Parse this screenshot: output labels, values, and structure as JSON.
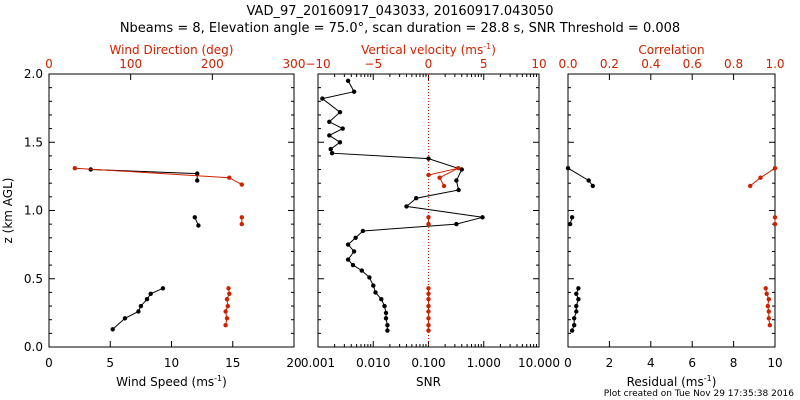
{
  "header": {
    "title": "VAD_97_20160917_043033, 20160917.043050",
    "subtitle": "Nbeams = 8, Elevation angle = 75.0°, scan duration = 28.8 s, SNR Threshold = 0.008"
  },
  "footer": {
    "timestamp": "Plot created on Tue Nov 29 17:35:38 2016"
  },
  "colors": {
    "primary": "#000000",
    "secondary": "#cc2200"
  },
  "chart_data": [
    {
      "type": "line",
      "ylabel": "z (km AGL)",
      "ylim": [
        0,
        2
      ],
      "yticks": [
        "0.0",
        "0.5",
        "1.0",
        "1.5",
        "2.0"
      ],
      "xlabel": "Wind Speed (ms",
      "xlabel_sup": "-1",
      "xlabel_tail": ")",
      "xlim": [
        0,
        20
      ],
      "xticks": [
        "0",
        "5",
        "10",
        "15",
        "20"
      ],
      "top_label": "Wind Direction (deg)",
      "top_lim": [
        0,
        333
      ],
      "top_ticks": [
        "0",
        "100",
        "200",
        "300"
      ],
      "series": [
        {
          "color": "#000000",
          "axis": "bottom",
          "segments": [
            [
              [
                3.4,
                1.3
              ],
              [
                12.1,
                1.27
              ],
              [
                12.1,
                1.22
              ]
            ],
            [
              [
                11.9,
                0.95
              ],
              [
                12.2,
                0.89
              ]
            ],
            [
              [
                9.3,
                0.43
              ],
              [
                8.3,
                0.39
              ],
              [
                8.0,
                0.35
              ],
              [
                7.5,
                0.3
              ],
              [
                7.3,
                0.26
              ],
              [
                6.2,
                0.21
              ],
              [
                5.2,
                0.13
              ]
            ]
          ]
        },
        {
          "color": "#cc2200",
          "axis": "top",
          "segments": [
            [
              [
                35,
                1.31
              ],
              [
                245,
                1.24
              ],
              [
                262,
                1.19
              ]
            ],
            [
              [
                262,
                0.95
              ],
              [
                262,
                0.9
              ]
            ],
            [
              [
                244,
                0.43
              ],
              [
                245,
                0.39
              ],
              [
                242,
                0.35
              ],
              [
                243,
                0.3
              ],
              [
                240,
                0.26
              ],
              [
                242,
                0.21
              ],
              [
                240,
                0.16
              ]
            ]
          ]
        }
      ]
    },
    {
      "type": "line",
      "xlabel": "SNR",
      "xscale": "log",
      "xlim": [
        0.001,
        10
      ],
      "xticks": [
        "0.001",
        "0.010",
        "0.100",
        "1.000",
        "10.000"
      ],
      "top_label": "Vertical velocity (ms",
      "top_label_sup": "-1",
      "top_label_tail": ")",
      "top_lim": [
        -10,
        10
      ],
      "top_ticks": [
        "−10",
        "−5",
        "0",
        "5",
        "10"
      ],
      "reference_line": {
        "axis": "top",
        "value": 0,
        "style": "dotted"
      },
      "series": [
        {
          "color": "#000000",
          "axis": "bottom",
          "segments": [
            [
              [
                0.0035,
                1.95
              ],
              [
                0.0045,
                1.87
              ],
              [
                0.0012,
                1.82
              ],
              [
                0.0025,
                1.72
              ],
              [
                0.0016,
                1.65
              ],
              [
                0.0028,
                1.6
              ],
              [
                0.0016,
                1.55
              ],
              [
                0.0025,
                1.5
              ],
              [
                0.0017,
                1.45
              ],
              [
                0.0018,
                1.42
              ],
              [
                0.1,
                1.38
              ],
              [
                0.4,
                1.3
              ],
              [
                0.32,
                1.22
              ],
              [
                0.35,
                1.15
              ],
              [
                0.06,
                1.09
              ],
              [
                0.04,
                1.03
              ],
              [
                0.95,
                0.95
              ],
              [
                0.32,
                0.9
              ],
              [
                0.0065,
                0.85
              ],
              [
                0.0048,
                0.8
              ],
              [
                0.0035,
                0.75
              ],
              [
                0.0045,
                0.7
              ],
              [
                0.0035,
                0.64
              ],
              [
                0.0043,
                0.6
              ],
              [
                0.0062,
                0.56
              ],
              [
                0.0085,
                0.51
              ],
              [
                0.01,
                0.45
              ],
              [
                0.011,
                0.4
              ],
              [
                0.014,
                0.35
              ],
              [
                0.016,
                0.3
              ],
              [
                0.017,
                0.25
              ],
              [
                0.017,
                0.21
              ],
              [
                0.018,
                0.16
              ],
              [
                0.018,
                0.12
              ]
            ]
          ]
        },
        {
          "color": "#cc2200",
          "axis": "top",
          "segments": [
            [
              [
                0,
                1.26
              ],
              [
                2.7,
                1.31
              ],
              [
                1.0,
                1.24
              ],
              [
                1.4,
                1.18
              ]
            ],
            [
              [
                0,
                0.95
              ],
              [
                0,
                0.9
              ]
            ],
            [
              [
                0,
                0.43
              ],
              [
                0,
                0.39
              ],
              [
                0,
                0.35
              ],
              [
                0,
                0.3
              ],
              [
                0,
                0.26
              ],
              [
                0,
                0.21
              ],
              [
                0,
                0.16
              ],
              [
                0,
                0.12
              ]
            ]
          ]
        }
      ]
    },
    {
      "type": "line",
      "xlabel": "Residual  (ms",
      "xlabel_sup": "-1",
      "xlabel_tail": ")",
      "xlim": [
        0,
        10
      ],
      "xticks": [
        "0",
        "2",
        "4",
        "6",
        "8",
        "10"
      ],
      "top_label": "Correlation",
      "top_lim": [
        0,
        1
      ],
      "top_ticks": [
        "0.0",
        "0.2",
        "0.4",
        "0.6",
        "0.8",
        "1.0"
      ],
      "series": [
        {
          "color": "#000000",
          "axis": "bottom",
          "segments": [
            [
              [
                0,
                1.31
              ],
              [
                1.0,
                1.22
              ],
              [
                1.2,
                1.18
              ]
            ],
            [
              [
                0.2,
                0.95
              ],
              [
                0.1,
                0.9
              ]
            ],
            [
              [
                0.5,
                0.43
              ],
              [
                0.4,
                0.39
              ],
              [
                0.5,
                0.35
              ],
              [
                0.4,
                0.3
              ],
              [
                0.4,
                0.26
              ],
              [
                0.3,
                0.21
              ],
              [
                0.3,
                0.16
              ],
              [
                0.2,
                0.12
              ]
            ]
          ]
        },
        {
          "color": "#cc2200",
          "axis": "top",
          "segments": [
            [
              [
                1.0,
                1.31
              ],
              [
                0.93,
                1.24
              ],
              [
                0.88,
                1.18
              ]
            ],
            [
              [
                1.0,
                0.95
              ],
              [
                1.0,
                0.9
              ]
            ],
            [
              [
                0.955,
                0.43
              ],
              [
                0.96,
                0.39
              ],
              [
                0.97,
                0.35
              ],
              [
                0.965,
                0.3
              ],
              [
                0.97,
                0.26
              ],
              [
                0.97,
                0.21
              ],
              [
                0.975,
                0.16
              ]
            ]
          ]
        }
      ]
    }
  ]
}
